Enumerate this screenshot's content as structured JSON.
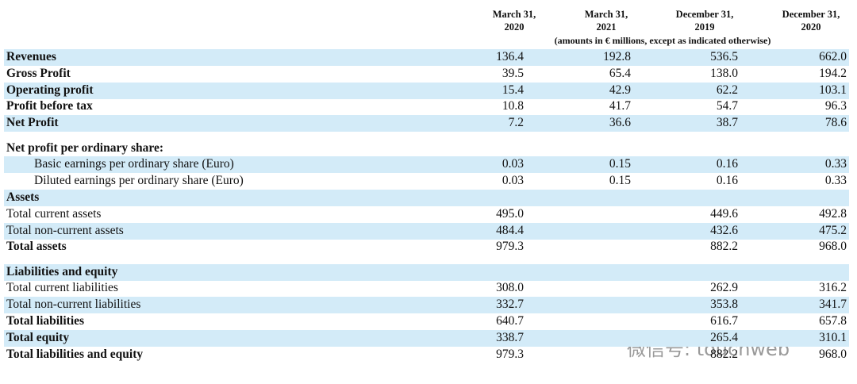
{
  "table": {
    "columns": [
      {
        "line1": "March 31,",
        "line2": "2020"
      },
      {
        "line1": "March 31,",
        "line2": "2021"
      },
      {
        "line1": "December 31,",
        "line2": "2019"
      },
      {
        "line1": "December 31,",
        "line2": "2020"
      }
    ],
    "note": "(amounts in € millions, except as indicated otherwise)",
    "sections": [
      {
        "rows": [
          {
            "label": "Revenues",
            "bold": true,
            "shaded": true,
            "values": [
              "136.4",
              "192.8",
              "536.5",
              "662.0"
            ]
          },
          {
            "label": "Gross Profit",
            "bold": true,
            "shaded": false,
            "values": [
              "39.5",
              "65.4",
              "138.0",
              "194.2"
            ]
          },
          {
            "label": "Operating profit",
            "bold": true,
            "shaded": true,
            "values": [
              "15.4",
              "42.9",
              "62.2",
              "103.1"
            ]
          },
          {
            "label": "Profit before tax",
            "bold": true,
            "shaded": false,
            "values": [
              "10.8",
              "41.7",
              "54.7",
              "96.3"
            ]
          },
          {
            "label": "Net Profit",
            "bold": true,
            "shaded": true,
            "values": [
              "7.2",
              "36.6",
              "38.7",
              "78.6"
            ]
          }
        ]
      },
      {
        "rows": [
          {
            "label": "Net profit per ordinary share:",
            "bold": true,
            "shaded": false,
            "values": [
              null,
              null,
              null,
              null
            ]
          },
          {
            "label": "Basic earnings per ordinary share (Euro)",
            "indent": true,
            "shaded": true,
            "values": [
              "0.03",
              "0.15",
              "0.16",
              "0.33"
            ]
          },
          {
            "label": "Diluted earnings per ordinary share (Euro)",
            "indent": true,
            "shaded": false,
            "values": [
              "0.03",
              "0.15",
              "0.16",
              "0.33"
            ]
          },
          {
            "label": "Assets",
            "bold": true,
            "shaded": true,
            "values": [
              null,
              null,
              null,
              null
            ]
          },
          {
            "label": "Total current assets",
            "shaded": false,
            "values": [
              "495.0",
              null,
              "449.6",
              "492.8"
            ]
          },
          {
            "label": "Total non-current assets",
            "shaded": true,
            "values": [
              "484.4",
              null,
              "432.6",
              "475.2"
            ]
          },
          {
            "label": "Total assets",
            "bold": true,
            "shaded": false,
            "values": [
              "979.3",
              null,
              "882.2",
              "968.0"
            ]
          }
        ]
      },
      {
        "rows": [
          {
            "label": "Liabilities and equity",
            "bold": true,
            "shaded": true,
            "values": [
              null,
              null,
              null,
              null
            ]
          },
          {
            "label": "Total current liabilities",
            "shaded": false,
            "values": [
              "308.0",
              null,
              "262.9",
              "316.2"
            ]
          },
          {
            "label": "Total non-current liabilities",
            "shaded": true,
            "values": [
              "332.7",
              null,
              "353.8",
              "341.7"
            ]
          },
          {
            "label": "Total liabilities",
            "bold": true,
            "shaded": false,
            "values": [
              "640.7",
              null,
              "616.7",
              "657.8"
            ]
          },
          {
            "label": "Total equity",
            "bold": true,
            "shaded": true,
            "values": [
              "338.7",
              null,
              "265.4",
              "310.1"
            ]
          },
          {
            "label": "Total liabilities and equity",
            "bold": true,
            "shaded": false,
            "values": [
              "979.3",
              null,
              "882.2",
              "968.0"
            ]
          }
        ]
      }
    ]
  },
  "watermark": "微信号: touchweb"
}
